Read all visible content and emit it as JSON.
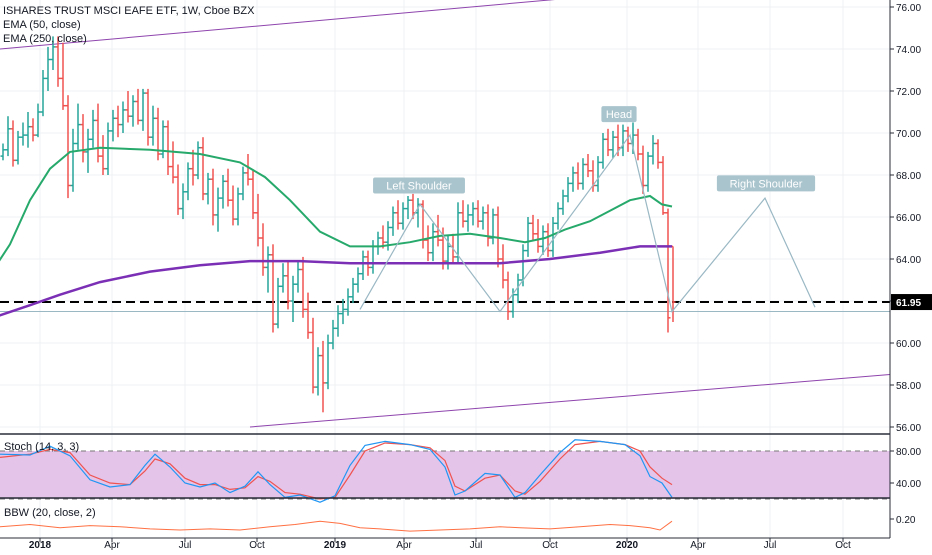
{
  "chart_title": "ISHARES TRUST MSCI EAFE ETF, 1W, Cboe BZX",
  "indicators": [
    "EMA (50, close)",
    "EMA (250, close)"
  ],
  "price_label": "61.95",
  "stoch_label": "Stoch (14, 3, 3)",
  "bbw_label": "BBW (20, close, 2)",
  "colors": {
    "up": "#26a69a",
    "down": "#ef5350",
    "ema50": "#26a96b",
    "ema250": "#7b2fb5",
    "trend": "#8e44ad",
    "pattern": "#9ab8c4",
    "stoch_k": "#2196f3",
    "stoch_d": "#ef5350",
    "stoch_band": "#e1bee7",
    "bbw": "#ff7043"
  },
  "chart_data": {
    "type": "line",
    "x_ticks": [
      "2018",
      "Apr",
      "Jul",
      "Oct",
      "2019",
      "Apr",
      "Jul",
      "Oct",
      "2020",
      "Apr",
      "Jul",
      "Oct"
    ],
    "y_ticks": [
      "76.00",
      "74.00",
      "72.00",
      "70.00",
      "68.00",
      "66.00",
      "64.00",
      "62.00",
      "60.00",
      "58.00",
      "56.00"
    ],
    "ylim": [
      56,
      76.2
    ],
    "annotations": [
      "Left Shoulder",
      "Head",
      "Right Shoulder"
    ],
    "last_price": 61.95,
    "stoch_ticks": [
      "80.00",
      "40.00"
    ],
    "bbw_ticks": [
      "0.20"
    ],
    "ema50": [
      [
        -1,
        63.9
      ],
      [
        10,
        64.7
      ],
      [
        30,
        66.8
      ],
      [
        50,
        68.3
      ],
      [
        70,
        69.1
      ],
      [
        100,
        69.3
      ],
      [
        150,
        69.2
      ],
      [
        200,
        69.0
      ],
      [
        240,
        68.6
      ],
      [
        265,
        67.9
      ],
      [
        290,
        66.8
      ],
      [
        320,
        65.3
      ],
      [
        350,
        64.6
      ],
      [
        380,
        64.6
      ],
      [
        410,
        64.8
      ],
      [
        440,
        65.1
      ],
      [
        470,
        65.2
      ],
      [
        500,
        65.0
      ],
      [
        525,
        64.8
      ],
      [
        545,
        65.0
      ],
      [
        565,
        65.4
      ],
      [
        590,
        65.8
      ],
      [
        610,
        66.3
      ],
      [
        630,
        66.8
      ],
      [
        650,
        67.0
      ],
      [
        662,
        66.6
      ],
      [
        672,
        66.5
      ]
    ],
    "ema250": [
      [
        -1,
        61.3
      ],
      [
        30,
        61.8
      ],
      [
        60,
        62.3
      ],
      [
        100,
        62.9
      ],
      [
        150,
        63.4
      ],
      [
        200,
        63.7
      ],
      [
        250,
        63.9
      ],
      [
        300,
        63.9
      ],
      [
        350,
        63.8
      ],
      [
        400,
        63.8
      ],
      [
        450,
        63.8
      ],
      [
        500,
        63.8
      ],
      [
        550,
        64.0
      ],
      [
        600,
        64.3
      ],
      [
        640,
        64.6
      ],
      [
        672,
        64.6
      ]
    ],
    "pattern_line": [
      [
        360,
        61.6
      ],
      [
        420,
        66.6
      ],
      [
        500,
        61.5
      ],
      [
        630,
        69.9
      ],
      [
        672,
        61.5
      ],
      [
        765,
        66.9
      ],
      [
        815,
        61.7
      ]
    ],
    "support_line": [
      [
        0,
        61.5
      ],
      [
        890,
        61.5
      ]
    ],
    "dashed_level": [
      [
        0,
        61.95
      ],
      [
        890,
        61.95
      ]
    ],
    "trend_top": [
      [
        0,
        74.0
      ],
      [
        565,
        76.4
      ]
    ],
    "trend_bottom": [
      [
        250,
        56.0
      ],
      [
        890,
        58.5
      ]
    ],
    "candles": [
      [
        3,
        68.9,
        69.5,
        68.7,
        69.2
      ],
      [
        8,
        69.2,
        70.8,
        68.9,
        70.2
      ],
      [
        13,
        70.2,
        70.6,
        68.4,
        68.7
      ],
      [
        18,
        68.7,
        70.1,
        68.5,
        69.8
      ],
      [
        23,
        69.8,
        70.5,
        69.4,
        69.9
      ],
      [
        28,
        69.9,
        71.0,
        69.3,
        70.3
      ],
      [
        33,
        70.3,
        70.7,
        69.6,
        69.9
      ],
      [
        38,
        69.9,
        71.4,
        69.8,
        71.0
      ],
      [
        43,
        71.0,
        73.0,
        70.8,
        72.6
      ],
      [
        48,
        72.6,
        74.1,
        72.0,
        73.5
      ],
      [
        53,
        73.5,
        74.6,
        73.0,
        74.1
      ],
      [
        58,
        74.1,
        74.6,
        72.2,
        72.6
      ],
      [
        63,
        72.6,
        74.3,
        71.1,
        71.3
      ],
      [
        68,
        71.3,
        71.8,
        66.9,
        67.5
      ],
      [
        73,
        67.5,
        70.2,
        67.2,
        69.5
      ],
      [
        78,
        69.5,
        71.4,
        69.2,
        70.4
      ],
      [
        83,
        70.4,
        70.9,
        68.6,
        69.1
      ],
      [
        88,
        69.1,
        70.2,
        68.1,
        69.7
      ],
      [
        93,
        69.7,
        71.1,
        69.3,
        70.6
      ],
      [
        98,
        70.6,
        71.4,
        68.6,
        68.9
      ],
      [
        103,
        68.9,
        69.9,
        68.0,
        68.3
      ],
      [
        108,
        68.3,
        70.5,
        68.0,
        70.1
      ],
      [
        113,
        70.1,
        71.1,
        69.6,
        70.7
      ],
      [
        118,
        70.7,
        71.3,
        69.8,
        70.4
      ],
      [
        123,
        70.4,
        71.5,
        70.0,
        71.1
      ],
      [
        128,
        71.1,
        72.0,
        70.5,
        70.8
      ],
      [
        133,
        70.8,
        71.8,
        70.3,
        71.5
      ],
      [
        138,
        71.5,
        72.1,
        70.4,
        70.6
      ],
      [
        143,
        70.6,
        72.1,
        70.1,
        71.9
      ],
      [
        148,
        71.9,
        72.1,
        69.4,
        69.8
      ],
      [
        153,
        69.8,
        71.3,
        69.4,
        70.7
      ],
      [
        158,
        70.7,
        71.2,
        68.7,
        69.0
      ],
      [
        163,
        69.0,
        70.6,
        68.8,
        70.3
      ],
      [
        168,
        70.3,
        70.6,
        68.0,
        68.4
      ],
      [
        173,
        68.4,
        69.6,
        67.6,
        67.9
      ],
      [
        178,
        67.9,
        68.5,
        66.1,
        66.4
      ],
      [
        183,
        66.4,
        67.6,
        65.9,
        67.2
      ],
      [
        188,
        67.2,
        68.6,
        66.8,
        68.3
      ],
      [
        193,
        68.3,
        69.2,
        67.5,
        68.0
      ],
      [
        198,
        68.0,
        69.6,
        67.8,
        69.3
      ],
      [
        203,
        69.3,
        69.8,
        66.8,
        67.1
      ],
      [
        208,
        67.1,
        68.1,
        66.6,
        67.8
      ],
      [
        213,
        67.8,
        68.3,
        65.6,
        66.1
      ],
      [
        218,
        66.1,
        67.4,
        65.3,
        66.9
      ],
      [
        223,
        66.9,
        68.0,
        66.4,
        67.7
      ],
      [
        228,
        67.7,
        68.3,
        66.5,
        66.8
      ],
      [
        233,
        66.8,
        67.5,
        65.6,
        65.9
      ],
      [
        238,
        65.9,
        67.4,
        65.6,
        67.1
      ],
      [
        243,
        67.1,
        68.4,
        66.8,
        68.1
      ],
      [
        248,
        68.1,
        69.0,
        67.5,
        67.8
      ],
      [
        253,
        67.8,
        68.2,
        65.9,
        66.2
      ],
      [
        258,
        66.2,
        67.1,
        64.6,
        65.0
      ],
      [
        263,
        65.0,
        65.7,
        63.2,
        63.6
      ],
      [
        268,
        63.6,
        64.6,
        62.4,
        64.2
      ],
      [
        273,
        64.2,
        64.7,
        60.5,
        60.9
      ],
      [
        278,
        60.9,
        63.1,
        60.7,
        62.7
      ],
      [
        283,
        62.7,
        63.8,
        62.4,
        63.2
      ],
      [
        288,
        63.2,
        63.9,
        61.6,
        62.0
      ],
      [
        293,
        62.0,
        63.2,
        61.0,
        62.8
      ],
      [
        298,
        62.8,
        63.9,
        62.4,
        63.5
      ],
      [
        303,
        63.5,
        64.1,
        61.2,
        61.6
      ],
      [
        308,
        61.6,
        62.4,
        60.2,
        60.5
      ],
      [
        313,
        60.5,
        61.2,
        57.6,
        57.9
      ],
      [
        318,
        57.9,
        59.8,
        57.5,
        59.4
      ],
      [
        323,
        59.4,
        60.1,
        56.7,
        58.1
      ],
      [
        328,
        58.1,
        60.4,
        57.8,
        60.0
      ],
      [
        333,
        60.0,
        61.1,
        59.7,
        60.7
      ],
      [
        338,
        60.7,
        61.8,
        60.3,
        61.4
      ],
      [
        343,
        61.4,
        62.1,
        60.9,
        61.6
      ],
      [
        348,
        61.6,
        62.6,
        61.3,
        62.2
      ],
      [
        353,
        62.2,
        63.1,
        61.9,
        62.8
      ],
      [
        358,
        62.8,
        63.6,
        62.4,
        63.3
      ],
      [
        363,
        63.3,
        64.4,
        63.0,
        64.1
      ],
      [
        368,
        64.1,
        64.4,
        63.2,
        63.6
      ],
      [
        373,
        63.6,
        64.9,
        63.3,
        64.6
      ],
      [
        378,
        64.6,
        65.3,
        64.2,
        65.0
      ],
      [
        383,
        65.0,
        65.6,
        64.5,
        64.8
      ],
      [
        388,
        64.8,
        65.8,
        64.4,
        65.5
      ],
      [
        393,
        65.5,
        66.5,
        65.1,
        66.2
      ],
      [
        398,
        66.2,
        66.8,
        65.4,
        65.7
      ],
      [
        403,
        65.7,
        66.7,
        65.4,
        66.4
      ],
      [
        408,
        66.4,
        67.0,
        65.9,
        66.8
      ],
      [
        413,
        66.8,
        67.1,
        65.9,
        66.2
      ],
      [
        418,
        66.2,
        66.9,
        65.5,
        66.6
      ],
      [
        423,
        66.6,
        66.8,
        64.5,
        64.9
      ],
      [
        428,
        64.9,
        65.6,
        63.9,
        64.3
      ],
      [
        433,
        64.3,
        65.7,
        63.9,
        65.3
      ],
      [
        438,
        65.3,
        66.1,
        64.6,
        64.9
      ],
      [
        443,
        64.9,
        65.5,
        63.5,
        63.9
      ],
      [
        448,
        63.9,
        65.1,
        63.5,
        64.6
      ],
      [
        453,
        64.6,
        65.2,
        63.8,
        64.1
      ],
      [
        458,
        64.1,
        66.7,
        63.8,
        66.2
      ],
      [
        463,
        66.2,
        66.8,
        65.5,
        65.8
      ],
      [
        468,
        65.8,
        66.6,
        65.3,
        66.1
      ],
      [
        473,
        66.1,
        66.7,
        65.6,
        66.4
      ],
      [
        478,
        66.4,
        66.8,
        65.5,
        65.8
      ],
      [
        483,
        65.8,
        66.5,
        65.4,
        66.2
      ],
      [
        488,
        66.2,
        66.6,
        64.6,
        65.0
      ],
      [
        493,
        65.0,
        66.4,
        64.7,
        66.1
      ],
      [
        498,
        66.1,
        66.5,
        63.6,
        64.0
      ],
      [
        503,
        64.0,
        64.7,
        62.6,
        63.0
      ],
      [
        508,
        63.0,
        63.4,
        61.1,
        61.5
      ],
      [
        513,
        61.5,
        62.6,
        61.2,
        62.3
      ],
      [
        518,
        62.3,
        63.3,
        61.9,
        63.0
      ],
      [
        523,
        63.0,
        64.7,
        62.7,
        64.4
      ],
      [
        528,
        64.4,
        66.0,
        64.1,
        65.7
      ],
      [
        533,
        65.7,
        66.1,
        64.9,
        65.2
      ],
      [
        538,
        65.2,
        65.9,
        64.3,
        64.6
      ],
      [
        543,
        64.6,
        65.6,
        64.2,
        65.3
      ],
      [
        548,
        65.3,
        65.7,
        64.1,
        64.4
      ],
      [
        553,
        64.4,
        66.0,
        64.1,
        65.7
      ],
      [
        558,
        65.7,
        66.7,
        65.4,
        66.4
      ],
      [
        563,
        66.4,
        67.3,
        66.1,
        67.0
      ],
      [
        568,
        67.0,
        67.9,
        66.7,
        67.6
      ],
      [
        573,
        67.6,
        68.4,
        67.2,
        68.1
      ],
      [
        578,
        68.1,
        68.6,
        67.3,
        67.6
      ],
      [
        583,
        67.6,
        68.8,
        67.3,
        68.5
      ],
      [
        588,
        68.5,
        69.0,
        67.9,
        68.2
      ],
      [
        593,
        68.2,
        68.7,
        67.2,
        67.5
      ],
      [
        598,
        67.5,
        68.9,
        67.2,
        68.6
      ],
      [
        603,
        68.6,
        70.0,
        68.3,
        69.7
      ],
      [
        608,
        69.7,
        70.2,
        68.9,
        69.2
      ],
      [
        613,
        69.2,
        70.1,
        68.8,
        69.8
      ],
      [
        618,
        69.8,
        70.4,
        68.9,
        69.3
      ],
      [
        623,
        69.3,
        70.4,
        68.9,
        70.1
      ],
      [
        628,
        70.1,
        70.3,
        69.1,
        69.5
      ],
      [
        633,
        69.5,
        70.5,
        69.0,
        69.9
      ],
      [
        638,
        69.9,
        70.2,
        68.7,
        69.0
      ],
      [
        643,
        69.0,
        69.4,
        67.1,
        67.5
      ],
      [
        648,
        67.5,
        69.1,
        67.2,
        68.9
      ],
      [
        653,
        68.9,
        69.9,
        68.5,
        69.5
      ],
      [
        658,
        69.5,
        69.7,
        68.3,
        68.6
      ],
      [
        663,
        68.6,
        68.9,
        66.1,
        66.2
      ],
      [
        668,
        66.2,
        66.4,
        60.5,
        61.2
      ],
      [
        673,
        64.6,
        64.6,
        61.0,
        61.95
      ]
    ],
    "stoch_k": [
      [
        0,
        76
      ],
      [
        30,
        75
      ],
      [
        50,
        86
      ],
      [
        70,
        74
      ],
      [
        90,
        44
      ],
      [
        110,
        35
      ],
      [
        130,
        38
      ],
      [
        145,
        62
      ],
      [
        155,
        76
      ],
      [
        170,
        60
      ],
      [
        185,
        40
      ],
      [
        200,
        35
      ],
      [
        215,
        40
      ],
      [
        230,
        28
      ],
      [
        245,
        36
      ],
      [
        258,
        54
      ],
      [
        270,
        38
      ],
      [
        285,
        22
      ],
      [
        300,
        25
      ],
      [
        320,
        16
      ],
      [
        335,
        24
      ],
      [
        350,
        62
      ],
      [
        365,
        87
      ],
      [
        385,
        92
      ],
      [
        410,
        88
      ],
      [
        430,
        82
      ],
      [
        445,
        60
      ],
      [
        455,
        25
      ],
      [
        465,
        30
      ],
      [
        485,
        52
      ],
      [
        500,
        50
      ],
      [
        515,
        22
      ],
      [
        525,
        28
      ],
      [
        540,
        50
      ],
      [
        560,
        78
      ],
      [
        575,
        94
      ],
      [
        600,
        92
      ],
      [
        625,
        88
      ],
      [
        640,
        74
      ],
      [
        650,
        48
      ],
      [
        662,
        40
      ],
      [
        672,
        22
      ]
    ],
    "stoch_d": [
      [
        0,
        72
      ],
      [
        30,
        76
      ],
      [
        50,
        82
      ],
      [
        70,
        78
      ],
      [
        90,
        50
      ],
      [
        110,
        40
      ],
      [
        130,
        38
      ],
      [
        145,
        55
      ],
      [
        155,
        70
      ],
      [
        170,
        64
      ],
      [
        185,
        46
      ],
      [
        200,
        38
      ],
      [
        215,
        38
      ],
      [
        230,
        32
      ],
      [
        245,
        34
      ],
      [
        258,
        48
      ],
      [
        270,
        42
      ],
      [
        285,
        28
      ],
      [
        300,
        26
      ],
      [
        320,
        20
      ],
      [
        335,
        22
      ],
      [
        350,
        50
      ],
      [
        365,
        80
      ],
      [
        385,
        90
      ],
      [
        410,
        88
      ],
      [
        430,
        84
      ],
      [
        445,
        68
      ],
      [
        455,
        36
      ],
      [
        465,
        30
      ],
      [
        485,
        46
      ],
      [
        500,
        50
      ],
      [
        515,
        30
      ],
      [
        525,
        26
      ],
      [
        540,
        42
      ],
      [
        560,
        70
      ],
      [
        575,
        88
      ],
      [
        600,
        92
      ],
      [
        625,
        88
      ],
      [
        640,
        80
      ],
      [
        650,
        60
      ],
      [
        662,
        46
      ],
      [
        672,
        38
      ]
    ],
    "bbw": [
      [
        0,
        0.13
      ],
      [
        30,
        0.15
      ],
      [
        60,
        0.12
      ],
      [
        90,
        0.14
      ],
      [
        120,
        0.13
      ],
      [
        150,
        0.11
      ],
      [
        180,
        0.1
      ],
      [
        210,
        0.11
      ],
      [
        240,
        0.1
      ],
      [
        270,
        0.13
      ],
      [
        295,
        0.15
      ],
      [
        320,
        0.18
      ],
      [
        340,
        0.16
      ],
      [
        360,
        0.12
      ],
      [
        380,
        0.11
      ],
      [
        410,
        0.09
      ],
      [
        440,
        0.1
      ],
      [
        470,
        0.11
      ],
      [
        500,
        0.13
      ],
      [
        520,
        0.12
      ],
      [
        550,
        0.11
      ],
      [
        580,
        0.13
      ],
      [
        610,
        0.15
      ],
      [
        630,
        0.14
      ],
      [
        650,
        0.12
      ],
      [
        660,
        0.1
      ],
      [
        672,
        0.18
      ]
    ]
  }
}
